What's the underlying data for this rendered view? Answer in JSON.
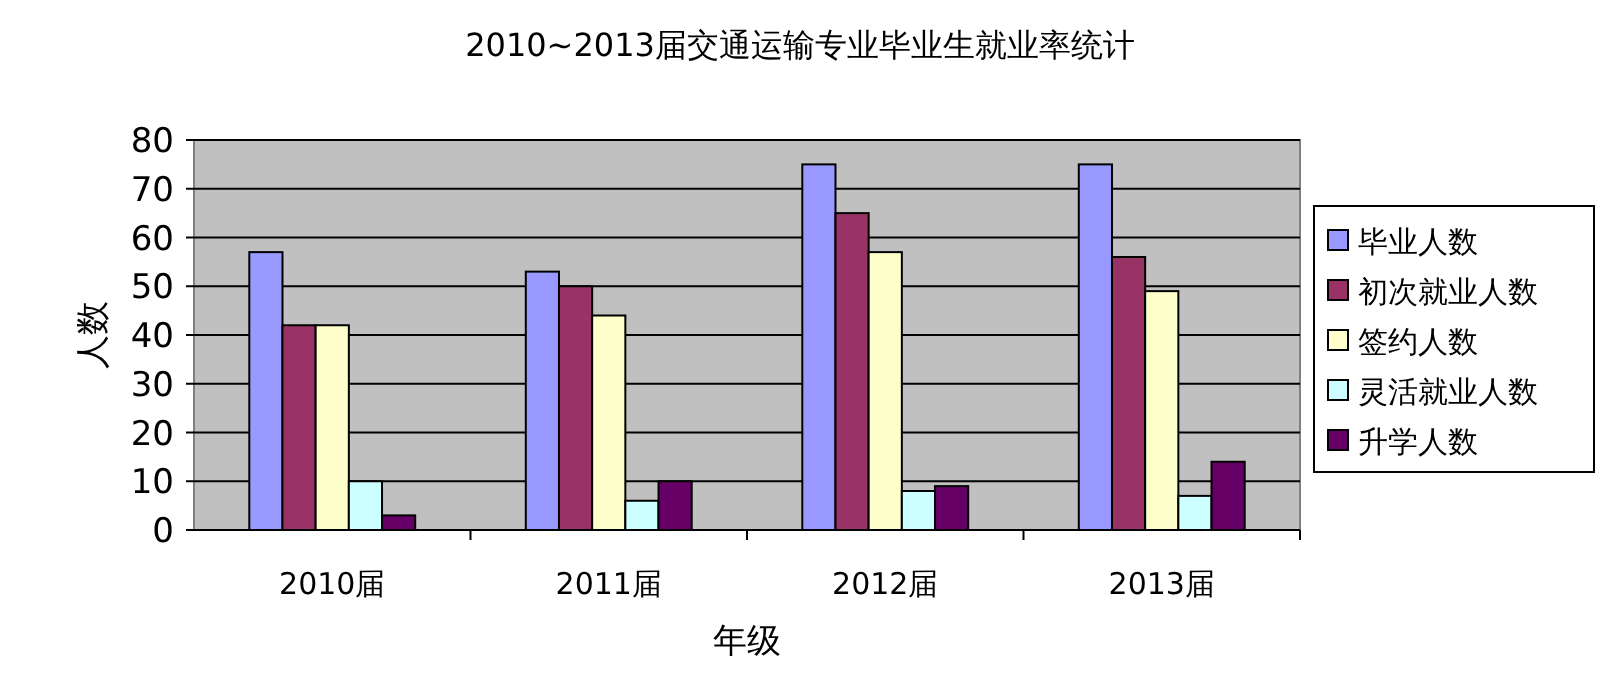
{
  "chart_data": {
    "type": "bar",
    "title": "2010~2013届交通运输专业毕业生就业率统计",
    "xlabel": "年级",
    "ylabel": "人数",
    "categories": [
      "2010届",
      "2011届",
      "2012届",
      "2013届"
    ],
    "series": [
      {
        "name": "毕业人数",
        "color": "#9999ff",
        "values": [
          57,
          53,
          75,
          75
        ]
      },
      {
        "name": "初次就业人数",
        "color": "#993366",
        "values": [
          42,
          50,
          65,
          56
        ]
      },
      {
        "name": "签约人数",
        "color": "#ffffcc",
        "values": [
          42,
          44,
          57,
          49
        ]
      },
      {
        "name": "灵活就业人数",
        "color": "#ccffff",
        "values": [
          10,
          6,
          8,
          7
        ]
      },
      {
        "name": "升学人数",
        "color": "#660066",
        "values": [
          3,
          10,
          9,
          14
        ]
      }
    ],
    "ylim": [
      0,
      80
    ],
    "yticks": [
      0,
      10,
      20,
      30,
      40,
      50,
      60,
      70,
      80
    ],
    "grid": "y",
    "legend": "right"
  }
}
